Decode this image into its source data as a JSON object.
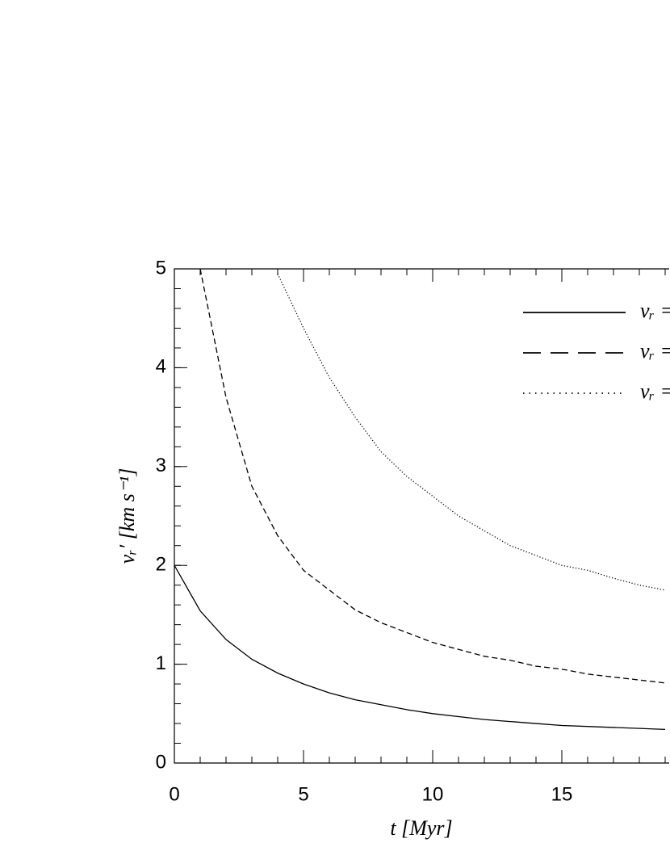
{
  "chart_data": {
    "type": "line",
    "xlabel": "t [Myr]",
    "ylabel": "vᵣ′ [km s⁻¹]",
    "x": [
      0,
      1,
      2,
      3,
      4,
      5,
      6,
      7,
      8,
      9,
      10,
      11,
      12,
      13,
      14,
      15,
      16,
      17,
      18,
      19
    ],
    "xlim": [
      0,
      19.2
    ],
    "ylim": [
      0,
      5
    ],
    "xticks": [
      0,
      5,
      10,
      15
    ],
    "yticks": [
      0,
      1,
      2,
      3,
      4,
      5
    ],
    "series": [
      {
        "name": "vᵣ =",
        "color": "#000000",
        "dash": "none",
        "values": [
          2,
          1.54,
          1.25,
          1.05,
          0.91,
          0.8,
          0.71,
          0.64,
          0.59,
          0.54,
          0.5,
          0.47,
          0.44,
          0.42,
          0.4,
          0.38,
          0.37,
          0.36,
          0.35,
          0.34
        ]
      },
      {
        "name": "vᵣ =",
        "color": "#000000",
        "dash": "dashed",
        "values": [
          null,
          5.0,
          3.7,
          2.8,
          2.3,
          1.95,
          1.75,
          1.55,
          1.42,
          1.32,
          1.22,
          1.15,
          1.08,
          1.04,
          0.98,
          0.95,
          0.9,
          0.87,
          0.84,
          0.81
        ]
      },
      {
        "name": "vᵣ =",
        "color": "#000000",
        "dash": "dotted",
        "values": [
          null,
          null,
          null,
          null,
          4.95,
          4.4,
          3.9,
          3.5,
          3.15,
          2.9,
          2.7,
          2.5,
          2.35,
          2.2,
          2.1,
          2.0,
          1.95,
          1.87,
          1.8,
          1.75
        ]
      }
    ]
  }
}
